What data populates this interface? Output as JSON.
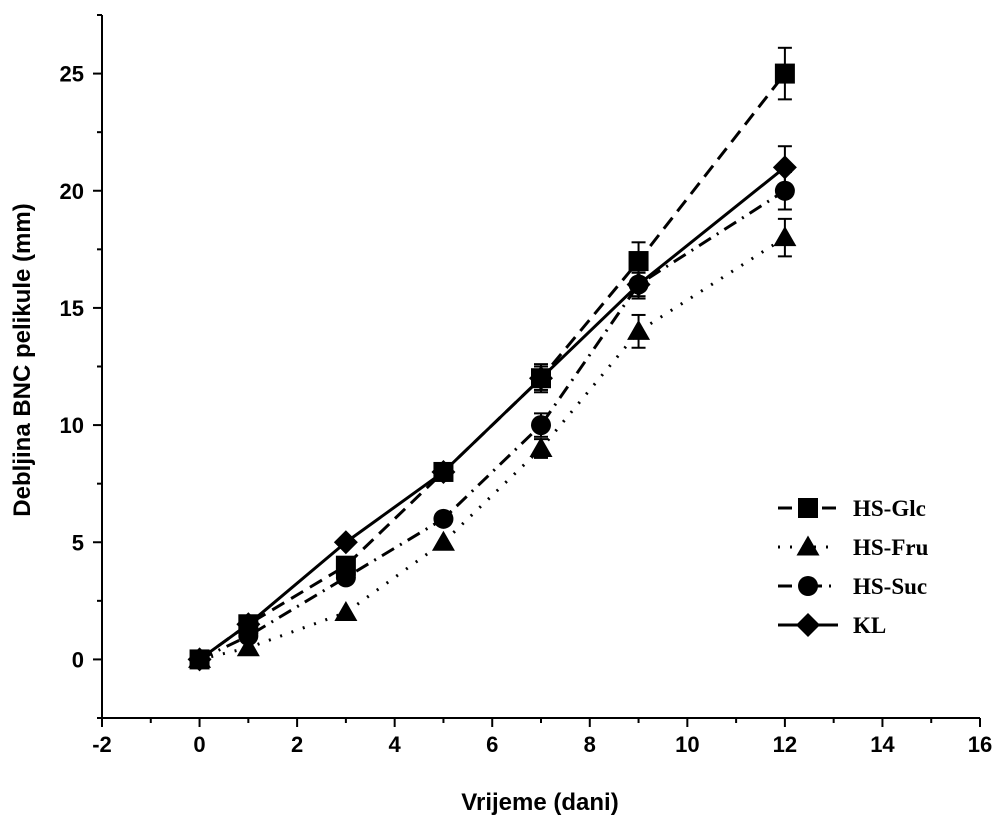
{
  "chart_data": {
    "type": "line",
    "xlabel": "Vrijeme (dani)",
    "ylabel": "Debljina BNC pelikule (mm)",
    "xlim": [
      -2,
      16
    ],
    "ylim": [
      -2.5,
      27.5
    ],
    "x_ticks": [
      "-2",
      "0",
      "2",
      "4",
      "6",
      "8",
      "10",
      "12",
      "14",
      "16"
    ],
    "y_ticks": [
      "0",
      "5",
      "10",
      "15",
      "20",
      "25"
    ],
    "legend_position": "bottom-right",
    "series": [
      {
        "name": "HS-Glc",
        "marker": "square",
        "line_style": "dash",
        "color": "#000000",
        "points": [
          {
            "x": 0,
            "y": 0,
            "err": 0
          },
          {
            "x": 1,
            "y": 1.5,
            "err": 0
          },
          {
            "x": 3,
            "y": 4,
            "err": 0
          },
          {
            "x": 5,
            "y": 8,
            "err": 0
          },
          {
            "x": 7,
            "y": 12,
            "err": 0.6
          },
          {
            "x": 9,
            "y": 17,
            "err": 0.8
          },
          {
            "x": 12,
            "y": 25,
            "err": 1.1
          }
        ]
      },
      {
        "name": "HS-Fru",
        "marker": "triangle",
        "line_style": "dot",
        "color": "#000000",
        "points": [
          {
            "x": 0,
            "y": 0,
            "err": 0
          },
          {
            "x": 1,
            "y": 0.5,
            "err": 0
          },
          {
            "x": 3,
            "y": 2,
            "err": 0
          },
          {
            "x": 5,
            "y": 5,
            "err": 0
          },
          {
            "x": 7,
            "y": 9,
            "err": 0.4
          },
          {
            "x": 9,
            "y": 14,
            "err": 0.7
          },
          {
            "x": 12,
            "y": 18,
            "err": 0.8
          }
        ]
      },
      {
        "name": "HS-Suc",
        "marker": "circle",
        "line_style": "dashdot",
        "color": "#000000",
        "points": [
          {
            "x": 0,
            "y": 0,
            "err": 0
          },
          {
            "x": 1,
            "y": 1,
            "err": 0
          },
          {
            "x": 3,
            "y": 3.5,
            "err": 0
          },
          {
            "x": 5,
            "y": 6,
            "err": 0
          },
          {
            "x": 7,
            "y": 10,
            "err": 0.5
          },
          {
            "x": 9,
            "y": 16,
            "err": 0.6
          },
          {
            "x": 12,
            "y": 20,
            "err": 0.8
          }
        ]
      },
      {
        "name": "KL",
        "marker": "diamond",
        "line_style": "solid",
        "color": "#000000",
        "points": [
          {
            "x": 0,
            "y": 0,
            "err": 0
          },
          {
            "x": 1,
            "y": 1.5,
            "err": 0
          },
          {
            "x": 3,
            "y": 5,
            "err": 0
          },
          {
            "x": 5,
            "y": 8,
            "err": 0
          },
          {
            "x": 7,
            "y": 12,
            "err": 0.5
          },
          {
            "x": 9,
            "y": 16,
            "err": 0.5
          },
          {
            "x": 12,
            "y": 21,
            "err": 0.9
          }
        ]
      }
    ]
  }
}
